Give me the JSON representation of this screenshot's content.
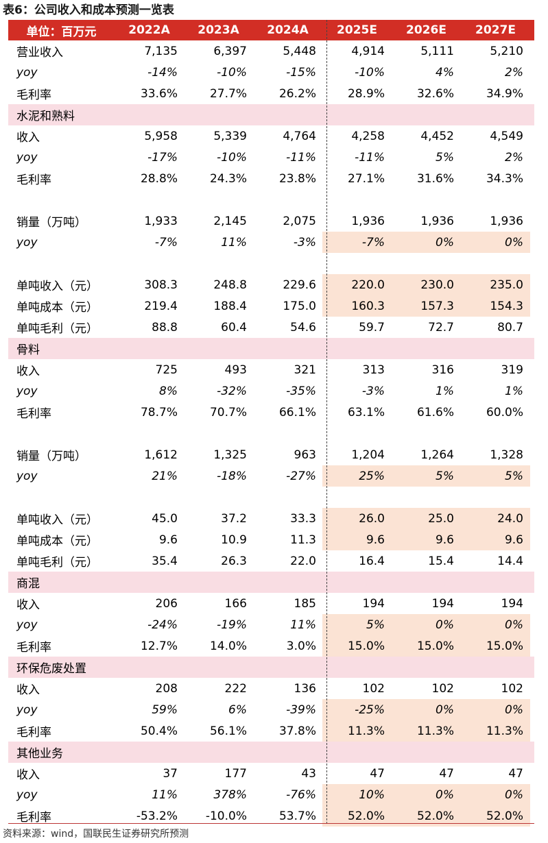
{
  "title": "表6：公司收入和成本预测一览表",
  "header": [
    "单位：百万元",
    "2022A",
    "2023A",
    "2024A",
    "2025E",
    "2026E",
    "2027E"
  ],
  "rows": [
    {
      "type": "data",
      "label": "营业收入",
      "values": [
        "7,135",
        "6,397",
        "5,448",
        "4,914",
        "5,111",
        "5,210"
      ],
      "hl": false
    },
    {
      "type": "yoy",
      "label": "yoy",
      "values": [
        "-14%",
        "-10%",
        "-15%",
        "-10%",
        "4%",
        "2%"
      ],
      "hl": false
    },
    {
      "type": "data",
      "label": "毛利率",
      "values": [
        "33.6%",
        "27.7%",
        "26.2%",
        "28.9%",
        "32.6%",
        "34.9%"
      ],
      "hl": false
    },
    {
      "type": "section",
      "label": "水泥和熟料"
    },
    {
      "type": "data",
      "label": "收入",
      "values": [
        "5,958",
        "5,339",
        "4,764",
        "4,258",
        "4,452",
        "4,549"
      ],
      "hl": false
    },
    {
      "type": "yoy",
      "label": "yoy",
      "values": [
        "-17%",
        "-10%",
        "-11%",
        "-11%",
        "5%",
        "2%"
      ],
      "hl": false
    },
    {
      "type": "data",
      "label": "毛利率",
      "values": [
        "28.8%",
        "24.3%",
        "23.8%",
        "27.1%",
        "31.6%",
        "34.3%"
      ],
      "hl": false
    },
    {
      "type": "blank"
    },
    {
      "type": "data",
      "label": "销量（万吨）",
      "values": [
        "1,933",
        "2,145",
        "2,075",
        "1,936",
        "1,936",
        "1,936"
      ],
      "hl": false
    },
    {
      "type": "yoy",
      "label": "yoy",
      "values": [
        "-7%",
        "11%",
        "-3%",
        "-7%",
        "0%",
        "0%"
      ],
      "hl": true
    },
    {
      "type": "blank"
    },
    {
      "type": "data",
      "label": "单吨收入（元）",
      "values": [
        "308.3",
        "248.8",
        "229.6",
        "220.0",
        "230.0",
        "235.0"
      ],
      "hl": true
    },
    {
      "type": "data",
      "label": "单吨成本（元）",
      "values": [
        "219.4",
        "188.4",
        "175.0",
        "160.3",
        "157.3",
        "154.3"
      ],
      "hl": true
    },
    {
      "type": "data",
      "label": "单吨毛利（元）",
      "values": [
        "88.8",
        "60.4",
        "54.6",
        "59.7",
        "72.7",
        "80.7"
      ],
      "hl": false
    },
    {
      "type": "section",
      "label": "骨料"
    },
    {
      "type": "data",
      "label": "收入",
      "values": [
        "725",
        "493",
        "321",
        "313",
        "316",
        "319"
      ],
      "hl": false
    },
    {
      "type": "yoy",
      "label": "yoy",
      "values": [
        "8%",
        "-32%",
        "-35%",
        "-3%",
        "1%",
        "1%"
      ],
      "hl": false
    },
    {
      "type": "data",
      "label": "毛利率",
      "values": [
        "78.7%",
        "70.7%",
        "66.1%",
        "63.1%",
        "61.6%",
        "60.0%"
      ],
      "hl": false
    },
    {
      "type": "blank"
    },
    {
      "type": "data",
      "label": "销量（万吨）",
      "values": [
        "1,612",
        "1,325",
        "963",
        "1,204",
        "1,264",
        "1,328"
      ],
      "hl": false
    },
    {
      "type": "yoy",
      "label": "yoy",
      "values": [
        "21%",
        "-18%",
        "-27%",
        "25%",
        "5%",
        "5%"
      ],
      "hl": true
    },
    {
      "type": "blank"
    },
    {
      "type": "data",
      "label": "单吨收入（元）",
      "values": [
        "45.0",
        "37.2",
        "33.3",
        "26.0",
        "25.0",
        "24.0"
      ],
      "hl": true
    },
    {
      "type": "data",
      "label": "单吨成本（元）",
      "values": [
        "9.6",
        "10.9",
        "11.3",
        "9.6",
        "9.6",
        "9.6"
      ],
      "hl": true
    },
    {
      "type": "data",
      "label": "单吨毛利（元）",
      "values": [
        "35.4",
        "26.3",
        "22.0",
        "16.4",
        "15.4",
        "14.4"
      ],
      "hl": false
    },
    {
      "type": "section",
      "label": "商混"
    },
    {
      "type": "data",
      "label": "收入",
      "values": [
        "206",
        "166",
        "185",
        "194",
        "194",
        "194"
      ],
      "hl": false
    },
    {
      "type": "yoy",
      "label": "yoy",
      "values": [
        "-24%",
        "-19%",
        "11%",
        "5%",
        "0%",
        "0%"
      ],
      "hl": true
    },
    {
      "type": "data",
      "label": "毛利率",
      "values": [
        "12.7%",
        "14.0%",
        "3.0%",
        "15.0%",
        "15.0%",
        "15.0%"
      ],
      "hl": true
    },
    {
      "type": "section",
      "label": "环保危废处置"
    },
    {
      "type": "data",
      "label": "收入",
      "values": [
        "208",
        "222",
        "136",
        "102",
        "102",
        "102"
      ],
      "hl": false
    },
    {
      "type": "yoy",
      "label": "yoy",
      "values": [
        "59%",
        "6%",
        "-39%",
        "-25%",
        "0%",
        "0%"
      ],
      "hl": true
    },
    {
      "type": "data",
      "label": "毛利率",
      "values": [
        "50.4%",
        "56.1%",
        "37.8%",
        "11.3%",
        "11.3%",
        "11.3%"
      ],
      "hl": true
    },
    {
      "type": "section",
      "label": "其他业务"
    },
    {
      "type": "data",
      "label": "收入",
      "values": [
        "37",
        "177",
        "43",
        "47",
        "47",
        "47"
      ],
      "hl": false
    },
    {
      "type": "yoy",
      "label": "yoy",
      "values": [
        "11%",
        "378%",
        "-76%",
        "10%",
        "0%",
        "0%"
      ],
      "hl": true
    },
    {
      "type": "data",
      "label": "毛利率",
      "values": [
        "-53.2%",
        "-10.0%",
        "53.7%",
        "52.0%",
        "52.0%",
        "52.0%"
      ],
      "hl": true
    }
  ],
  "source": "资料来源：wind，国联民生证券研究所预测"
}
